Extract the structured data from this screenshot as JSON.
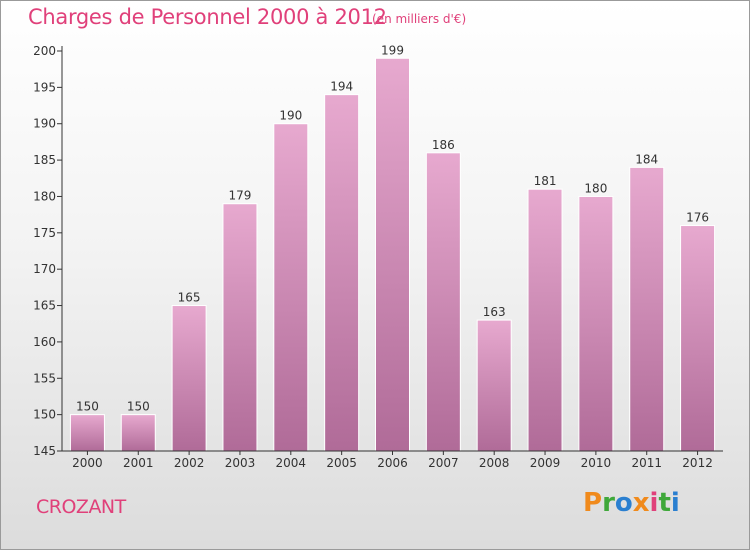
{
  "title": "Charges de Personnel 2000 à 2012",
  "subtitle": "(en milliers d'€)",
  "commune": "CROZANT",
  "logo": {
    "letters": [
      "P",
      "r",
      "o",
      "x",
      "i",
      "t",
      "i"
    ],
    "colors": [
      "#f08a1c",
      "#3fa83a",
      "#2a7fd0",
      "#f08a1c",
      "#e0407a",
      "#3fa83a",
      "#2a7fd0"
    ]
  },
  "colors": {
    "accent": "#e0407a",
    "bar_top": "#e7a9cf",
    "bar_bottom": "#b06b98",
    "bar_edge": "#ffffff"
  },
  "chart_data": {
    "type": "bar",
    "categories": [
      "2000",
      "2001",
      "2002",
      "2003",
      "2004",
      "2005",
      "2006",
      "2007",
      "2008",
      "2009",
      "2010",
      "2011",
      "2012"
    ],
    "values": [
      150,
      150,
      165,
      179,
      190,
      194,
      199,
      186,
      163,
      181,
      180,
      184,
      176
    ],
    "title": "Charges de Personnel 2000 à 2012",
    "subtitle": "(en milliers d'€)",
    "xlabel": "",
    "ylabel": "",
    "ylim": [
      145,
      200
    ],
    "yticks": [
      145,
      150,
      155,
      160,
      165,
      170,
      175,
      180,
      185,
      190,
      195,
      200
    ],
    "grid": false,
    "legend": "none"
  }
}
